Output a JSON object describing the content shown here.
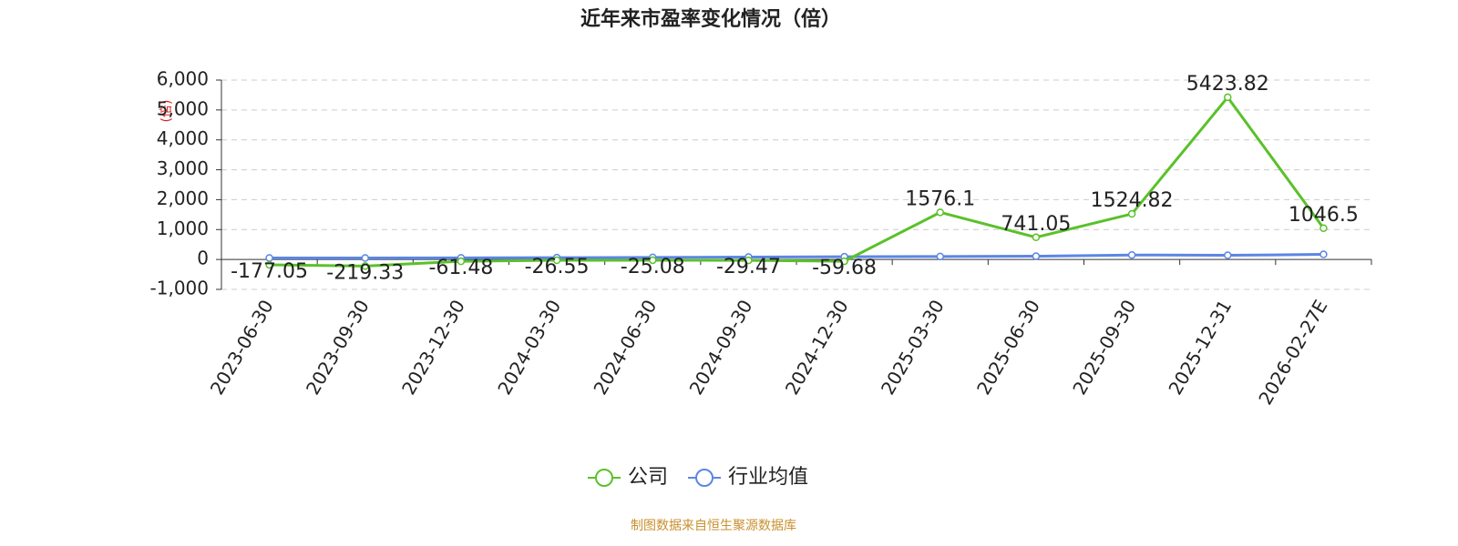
{
  "chart_data": {
    "type": "line",
    "title": "近年来市盈率变化情况（倍）",
    "y_label": "(倍)",
    "source": "制图数据来自恒生聚源数据库",
    "categories": [
      "2023-06-30",
      "2023-09-30",
      "2023-12-30",
      "2024-03-30",
      "2024-06-30",
      "2024-09-30",
      "2024-12-30",
      "2025-03-30",
      "2025-06-30",
      "2025-09-30",
      "2025-12-31",
      "2026-02-27E"
    ],
    "series": [
      {
        "name": "公司",
        "color": "#5ac12a",
        "values": [
          -177.05,
          -219.33,
          -61.48,
          -26.55,
          -25.08,
          -29.47,
          -59.68,
          1576.1,
          741.05,
          1524.82,
          5423.82,
          1046.5
        ],
        "show_labels": true
      },
      {
        "name": "行业均值",
        "color": "#5b86e5",
        "values": [
          50,
          50,
          55,
          60,
          70,
          80,
          90,
          100,
          110,
          150,
          140,
          170
        ],
        "show_labels": false
      }
    ],
    "ylim": [
      -1000,
      6000
    ],
    "yticks": [
      {
        "value": -1000,
        "label": "-1,000"
      },
      0,
      {
        "value": 1000,
        "label": "1,000"
      },
      {
        "value": 2000,
        "label": "2,000"
      },
      {
        "value": 3000,
        "label": "3,000"
      },
      {
        "value": 4000,
        "label": "4,000"
      },
      {
        "value": 5000,
        "label": "5,000"
      },
      {
        "value": 6000,
        "label": "6,000"
      }
    ],
    "grid": true
  }
}
